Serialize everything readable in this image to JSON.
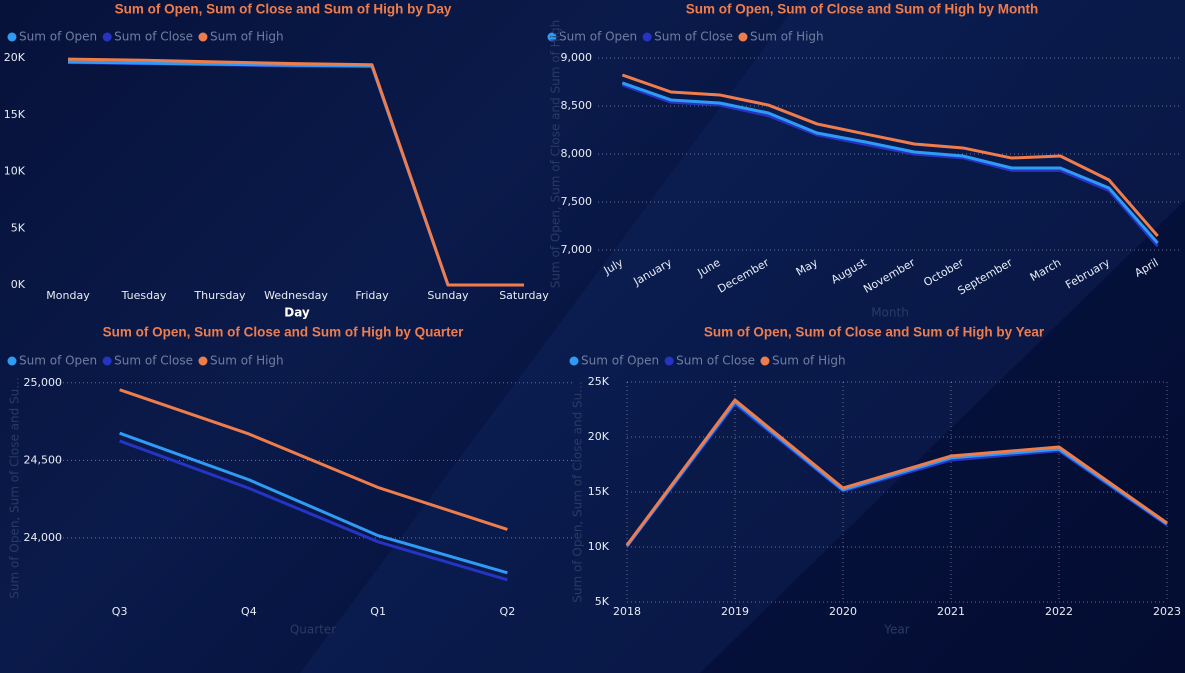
{
  "chart_data": [
    {
      "type": "line",
      "title": "Sum of Open, Sum of Close and Sum of High by Day",
      "x_label": "Day",
      "categories": [
        "Monday",
        "Tuesday",
        "Thursday",
        "Wednesday",
        "Friday",
        "Sunday",
        "Saturday"
      ],
      "series": [
        {
          "name": "Sum of Open",
          "color": "#2f9bf4",
          "values": [
            19650,
            19550,
            19450,
            19350,
            19300,
            0,
            0
          ]
        },
        {
          "name": "Sum of Close",
          "color": "#2634c4",
          "values": [
            19600,
            19500,
            19400,
            19300,
            19250,
            0,
            0
          ]
        },
        {
          "name": "Sum of High",
          "color": "#ef7d4c",
          "values": [
            19900,
            19800,
            19650,
            19500,
            19400,
            0,
            0
          ]
        }
      ],
      "ylim": [
        0,
        20000
      ],
      "yticks": [
        {
          "value": 0,
          "label": "0K"
        },
        {
          "value": 5000,
          "label": "5K"
        },
        {
          "value": 10000,
          "label": "10K"
        },
        {
          "value": 15000,
          "label": "15K"
        },
        {
          "value": 20000,
          "label": "20K"
        }
      ],
      "grid": false
    },
    {
      "type": "line",
      "title": "Sum of Open, Sum of Close and Sum of High by Month",
      "x_label": "Month",
      "y_label": "Sum of Open, Sum of Close and Sum of High",
      "categories": [
        "July",
        "January",
        "June",
        "December",
        "May",
        "August",
        "November",
        "October",
        "September",
        "March",
        "February",
        "April"
      ],
      "series": [
        {
          "name": "Sum of Open",
          "color": "#2f9bf4",
          "values": [
            8740,
            8563,
            8531,
            8427,
            8219,
            8125,
            8021,
            7979,
            7854,
            7854,
            7646,
            7073
          ]
        },
        {
          "name": "Sum of Close",
          "color": "#2634c4",
          "values": [
            8720,
            8540,
            8510,
            8400,
            8200,
            8100,
            8000,
            7960,
            7830,
            7830,
            7620,
            7040
          ]
        },
        {
          "name": "Sum of High",
          "color": "#ef7d4c",
          "values": [
            8823,
            8646,
            8615,
            8510,
            8313,
            8208,
            8104,
            8063,
            7958,
            7979,
            7729,
            7146
          ]
        }
      ],
      "ylim": [
        7000,
        9000
      ],
      "yticks": [
        {
          "value": 7000,
          "label": "7,000"
        },
        {
          "value": 7500,
          "label": "7,500"
        },
        {
          "value": 8000,
          "label": "8,000"
        },
        {
          "value": 8500,
          "label": "8,500"
        },
        {
          "value": 9000,
          "label": "9,000"
        }
      ],
      "grid": true
    },
    {
      "type": "line",
      "title": "Sum of Open, Sum of Close and Sum of High by Quarter",
      "x_label": "Quarter",
      "y_label": "Sum of Open, Sum of Close and Su...",
      "categories": [
        "Q3",
        "Q4",
        "Q1",
        "Q2"
      ],
      "series": [
        {
          "name": "Sum of Open",
          "color": "#2f9bf4",
          "values": [
            24675,
            24375,
            24015,
            23775
          ]
        },
        {
          "name": "Sum of Close",
          "color": "#2634c4",
          "values": [
            24625,
            24320,
            23975,
            23730
          ]
        },
        {
          "name": "Sum of High",
          "color": "#ef7d4c",
          "values": [
            24955,
            24670,
            24325,
            24055
          ]
        }
      ],
      "ylim": [
        23600,
        25050
      ],
      "yticks": [
        {
          "value": 24000,
          "label": "24,000"
        },
        {
          "value": 24500,
          "label": "24,500"
        },
        {
          "value": 25000,
          "label": "25,000"
        }
      ],
      "grid": true
    },
    {
      "type": "line",
      "title": "Sum of Open, Sum of Close and Sum of High by Year",
      "x_label": "Year",
      "y_label": "Sum of Open, Sum of Close and Su...",
      "x": [
        2018,
        2019,
        2020,
        2021,
        2022,
        2023
      ],
      "series": [
        {
          "name": "Sum of Open",
          "color": "#2f9bf4",
          "values": [
            10100,
            23200,
            15200,
            18100,
            18900,
            12100
          ]
        },
        {
          "name": "Sum of Close",
          "color": "#2634c4",
          "values": [
            10050,
            23000,
            15100,
            17900,
            18750,
            12000
          ]
        },
        {
          "name": "Sum of High",
          "color": "#ef7d4c",
          "values": [
            10180,
            23360,
            15360,
            18270,
            19090,
            12180
          ]
        }
      ],
      "xlim": [
        2018,
        2023
      ],
      "xticks": [
        2018,
        2019,
        2020,
        2021,
        2022,
        2023
      ],
      "ylim": [
        5000,
        25000
      ],
      "yticks": [
        {
          "value": 5000,
          "label": "5K"
        },
        {
          "value": 10000,
          "label": "10K"
        },
        {
          "value": 15000,
          "label": "15K"
        },
        {
          "value": 20000,
          "label": "20K"
        },
        {
          "value": 25000,
          "label": "25K"
        }
      ],
      "grid": true,
      "xgrid": true
    }
  ]
}
